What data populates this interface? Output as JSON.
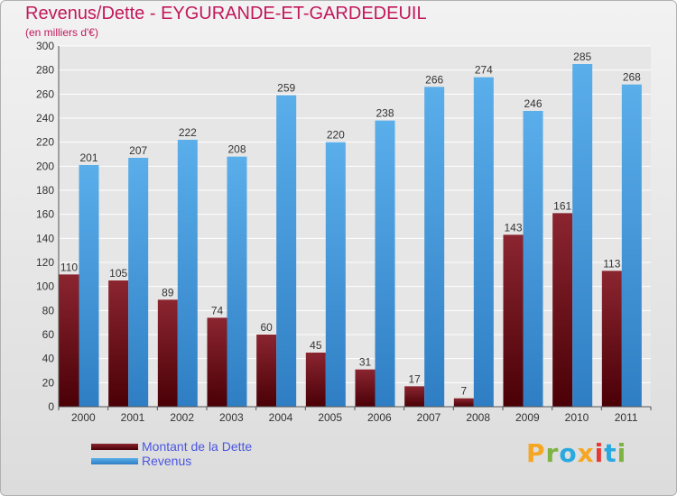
{
  "header": {
    "title": "Revenus/Dette - EYGURANDE-ET-GARDEDEUIL",
    "subtitle": "(en milliers d'€)"
  },
  "colors": {
    "dette_top": "#8b2530",
    "dette_bottom": "#4a0006",
    "revenus_top": "#5aaeea",
    "revenus_bottom": "#2f7ec4",
    "title": "#c2185b",
    "legend_text": "#4a56e0"
  },
  "logo": {
    "text": "Proxiti",
    "letters": [
      {
        "ch": "P",
        "color": "#f5a623"
      },
      {
        "ch": "r",
        "color": "#7cb342"
      },
      {
        "ch": "o",
        "color": "#29a9e0"
      },
      {
        "ch": "x",
        "color": "#f5a623"
      },
      {
        "ch": "i",
        "color": "#e53935"
      },
      {
        "ch": "t",
        "color": "#29a9e0"
      },
      {
        "ch": "i",
        "color": "#7cb342"
      }
    ]
  },
  "chart_data": {
    "type": "bar",
    "categories": [
      "2000",
      "2001",
      "2002",
      "2003",
      "2004",
      "2005",
      "2006",
      "2007",
      "2008",
      "2009",
      "2010",
      "2011"
    ],
    "series": [
      {
        "name": "Montant de la Dette",
        "values": [
          110,
          105,
          89,
          74,
          60,
          45,
          31,
          17,
          7,
          143,
          161,
          113
        ]
      },
      {
        "name": "Revenus",
        "values": [
          201,
          207,
          222,
          208,
          259,
          220,
          238,
          266,
          274,
          246,
          285,
          268
        ]
      }
    ],
    "title": "Revenus/Dette - EYGURANDE-ET-GARDEDEUIL",
    "ylabel": "(en milliers d'€)",
    "ylim": [
      0,
      300
    ],
    "yticks": [
      0,
      20,
      40,
      60,
      80,
      100,
      120,
      140,
      160,
      180,
      200,
      220,
      240,
      260,
      280,
      300
    ],
    "grid": true,
    "legend": "bottom-left"
  }
}
